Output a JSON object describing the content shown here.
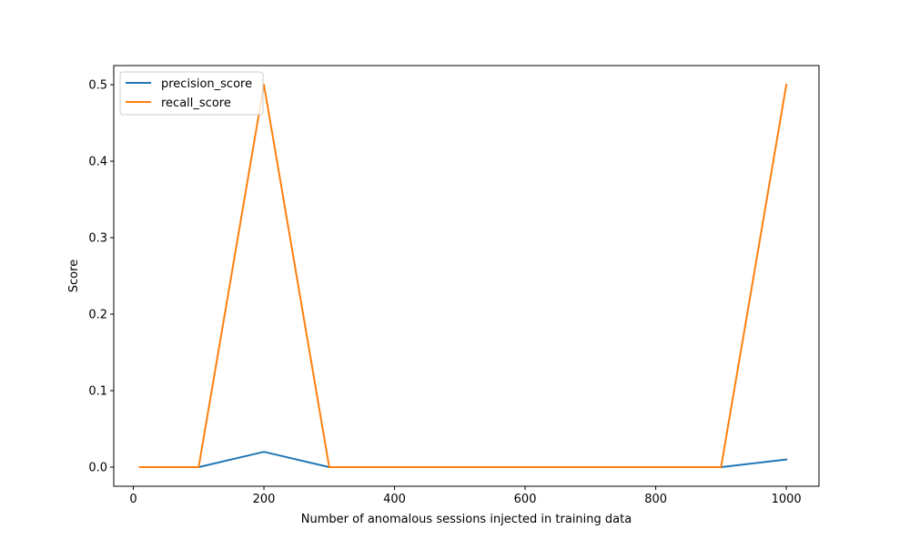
{
  "chart_data": {
    "type": "line",
    "title": "",
    "xlabel": "Number of anomalous sessions injected in training data",
    "ylabel": "Score",
    "xlim": [
      -30,
      1050
    ],
    "ylim": [
      -0.025,
      0.525
    ],
    "xticks": [
      0,
      200,
      400,
      600,
      800,
      1000
    ],
    "yticks": [
      0.0,
      0.1,
      0.2,
      0.3,
      0.4,
      0.5
    ],
    "xtick_labels": [
      "0",
      "200",
      "400",
      "600",
      "800",
      "1000"
    ],
    "ytick_labels": [
      "0.0",
      "0.1",
      "0.2",
      "0.3",
      "0.4",
      "0.5"
    ],
    "grid": false,
    "legend_position": "top-left",
    "x": [
      10,
      100,
      200,
      300,
      400,
      500,
      600,
      700,
      800,
      900,
      1000
    ],
    "series": [
      {
        "name": "precision_score",
        "color": "#1f77b4",
        "values": [
          0,
          0,
          0.02,
          0,
          0,
          0,
          0,
          0,
          0,
          0,
          0.01
        ]
      },
      {
        "name": "recall_score",
        "color": "#ff7f0e",
        "values": [
          0,
          0,
          0.5,
          0,
          0,
          0,
          0,
          0,
          0,
          0,
          0.5
        ]
      }
    ]
  }
}
